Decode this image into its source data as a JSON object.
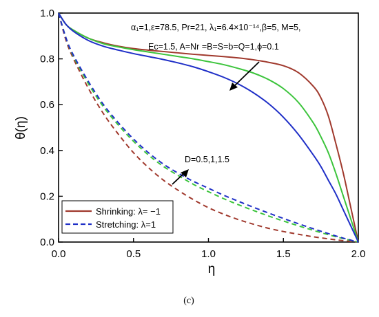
{
  "chart_data": {
    "type": "line",
    "xlabel": "η",
    "ylabel": "θ(η)",
    "xlim": [
      0.0,
      2.0
    ],
    "ylim": [
      0.0,
      1.0
    ],
    "xticks": [
      "0.0",
      "0.5",
      "1.0",
      "1.5",
      "2.0"
    ],
    "yticks": [
      "0.0",
      "0.2",
      "0.4",
      "0.6",
      "0.8",
      "1.0"
    ],
    "grid": false,
    "legend_position": "bottom-left",
    "legend": [
      {
        "label": "Shrinking: λ= −1",
        "style": "solid",
        "color": "#a0392d"
      },
      {
        "label": "Stretching: λ=1",
        "style": "dashed",
        "color": "#1f2fc7"
      }
    ],
    "parameter_text": {
      "line1": "α₁=1,ε=78.5, Pr=21, λ₁=6.4×10⁻¹⁴,β=5, M=5,",
      "line2": "Ec=1.5, A=Nr =B=S=b=Q=1,ϕ=0.1"
    },
    "annotation_text": "D=0.5,1,1.5",
    "caption": "(c)",
    "colors": {
      "D_0_5": "#a0392d",
      "D_1": "#3cc43c",
      "D_1_5": "#1f2fc7"
    },
    "series": [
      {
        "case": "Shrinking",
        "D": 0.5,
        "style": "solid",
        "color": "#a0392d",
        "x": [
          0.0,
          0.05,
          0.1,
          0.2,
          0.3,
          0.4,
          0.5,
          0.6,
          0.7,
          0.8,
          0.9,
          1.0,
          1.1,
          1.2,
          1.3,
          1.4,
          1.5,
          1.6,
          1.7,
          1.75,
          1.8,
          1.85,
          1.9,
          1.95,
          2.0
        ],
        "y": [
          1.0,
          0.95,
          0.925,
          0.89,
          0.87,
          0.855,
          0.845,
          0.838,
          0.832,
          0.826,
          0.82,
          0.815,
          0.81,
          0.804,
          0.796,
          0.785,
          0.77,
          0.74,
          0.68,
          0.63,
          0.55,
          0.43,
          0.3,
          0.15,
          0.0
        ]
      },
      {
        "case": "Shrinking",
        "D": 1.0,
        "style": "solid",
        "color": "#3cc43c",
        "x": [
          0.0,
          0.05,
          0.1,
          0.2,
          0.3,
          0.4,
          0.5,
          0.6,
          0.7,
          0.8,
          0.9,
          1.0,
          1.1,
          1.2,
          1.3,
          1.4,
          1.5,
          1.6,
          1.7,
          1.75,
          1.8,
          1.85,
          1.9,
          1.95,
          2.0
        ],
        "y": [
          1.0,
          0.95,
          0.925,
          0.89,
          0.866,
          0.852,
          0.84,
          0.83,
          0.82,
          0.81,
          0.8,
          0.788,
          0.775,
          0.758,
          0.738,
          0.71,
          0.67,
          0.61,
          0.52,
          0.46,
          0.39,
          0.3,
          0.2,
          0.1,
          0.0
        ]
      },
      {
        "case": "Shrinking",
        "D": 1.5,
        "style": "solid",
        "color": "#1f2fc7",
        "x": [
          0.0,
          0.05,
          0.1,
          0.2,
          0.3,
          0.4,
          0.5,
          0.6,
          0.7,
          0.8,
          0.9,
          1.0,
          1.1,
          1.2,
          1.3,
          1.4,
          1.5,
          1.6,
          1.7,
          1.75,
          1.8,
          1.85,
          1.9,
          1.95,
          2.0
        ],
        "y": [
          1.0,
          0.95,
          0.92,
          0.88,
          0.855,
          0.838,
          0.823,
          0.81,
          0.797,
          0.782,
          0.765,
          0.744,
          0.72,
          0.69,
          0.652,
          0.605,
          0.545,
          0.47,
          0.38,
          0.33,
          0.27,
          0.21,
          0.14,
          0.07,
          0.0
        ]
      },
      {
        "case": "Stretching",
        "D": 0.5,
        "style": "dashed",
        "color": "#a0392d",
        "x": [
          0.0,
          0.05,
          0.1,
          0.2,
          0.3,
          0.4,
          0.5,
          0.6,
          0.7,
          0.8,
          0.9,
          1.0,
          1.1,
          1.2,
          1.3,
          1.4,
          1.5,
          1.6,
          1.7,
          1.8,
          1.9,
          2.0
        ],
        "y": [
          1.0,
          0.88,
          0.8,
          0.67,
          0.56,
          0.47,
          0.39,
          0.325,
          0.27,
          0.225,
          0.185,
          0.15,
          0.122,
          0.098,
          0.078,
          0.06,
          0.046,
          0.034,
          0.023,
          0.014,
          0.006,
          0.0
        ]
      },
      {
        "case": "Stretching",
        "D": 1.0,
        "style": "dashed",
        "color": "#3cc43c",
        "x": [
          0.0,
          0.05,
          0.1,
          0.2,
          0.3,
          0.4,
          0.5,
          0.6,
          0.7,
          0.8,
          0.9,
          1.0,
          1.1,
          1.2,
          1.3,
          1.4,
          1.5,
          1.6,
          1.7,
          1.8,
          1.9,
          2.0
        ],
        "y": [
          1.0,
          0.89,
          0.81,
          0.69,
          0.59,
          0.51,
          0.44,
          0.38,
          0.33,
          0.29,
          0.252,
          0.22,
          0.19,
          0.163,
          0.138,
          0.114,
          0.092,
          0.071,
          0.051,
          0.032,
          0.015,
          0.0
        ]
      },
      {
        "case": "Stretching",
        "D": 1.5,
        "style": "dashed",
        "color": "#1f2fc7",
        "x": [
          0.0,
          0.05,
          0.1,
          0.2,
          0.3,
          0.4,
          0.5,
          0.6,
          0.7,
          0.8,
          0.9,
          1.0,
          1.1,
          1.2,
          1.3,
          1.4,
          1.5,
          1.6,
          1.7,
          1.8,
          1.9,
          2.0
        ],
        "y": [
          1.0,
          0.89,
          0.815,
          0.7,
          0.6,
          0.52,
          0.45,
          0.39,
          0.34,
          0.3,
          0.265,
          0.235,
          0.205,
          0.178,
          0.152,
          0.127,
          0.103,
          0.08,
          0.058,
          0.037,
          0.017,
          0.0
        ]
      }
    ]
  }
}
